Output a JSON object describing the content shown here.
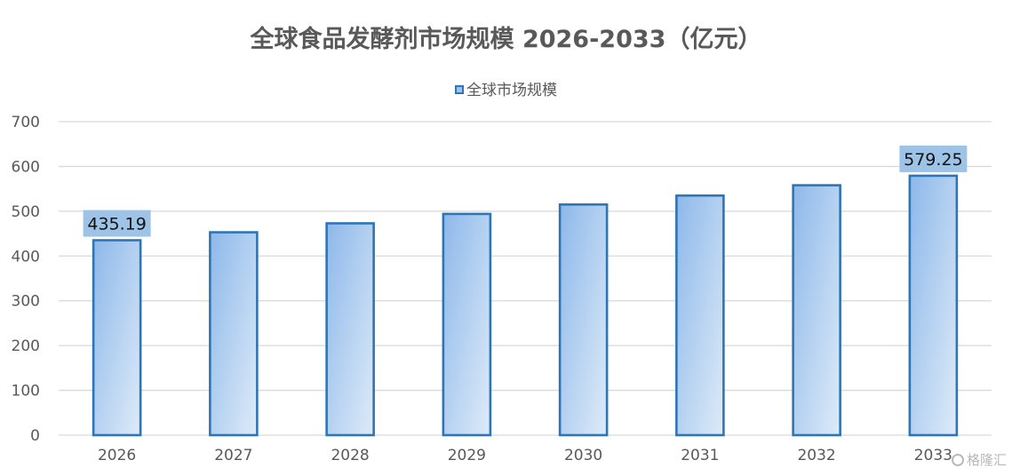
{
  "chart_data": {
    "type": "bar",
    "title": "全球食品发酵剂市场规模 2026-2033（亿元）",
    "categories": [
      "2026",
      "2027",
      "2028",
      "2029",
      "2030",
      "2031",
      "2032",
      "2033"
    ],
    "series": [
      {
        "name": "全球市场规模",
        "values": [
          435.19,
          453,
          473,
          494,
          515,
          535,
          558,
          579.25
        ]
      }
    ],
    "data_labels": [
      {
        "index": 0,
        "text": "435.19"
      },
      {
        "index": 7,
        "text": "579.25"
      }
    ],
    "ylim": [
      0,
      700
    ],
    "yticks": [
      0,
      100,
      200,
      300,
      400,
      500,
      600,
      700
    ],
    "xlabel": "",
    "ylabel": "",
    "grid": true,
    "legend_position": "top",
    "colors": {
      "bar_fill_start": "#8db8ea",
      "bar_fill_end": "#deebf8",
      "bar_border": "#2e75b6",
      "label_box": "#9dc3e6",
      "grid": "#d9d9d9",
      "text": "#595959"
    }
  },
  "watermark": {
    "text": "格隆汇",
    "icon": "gelonghui-logo-icon"
  }
}
